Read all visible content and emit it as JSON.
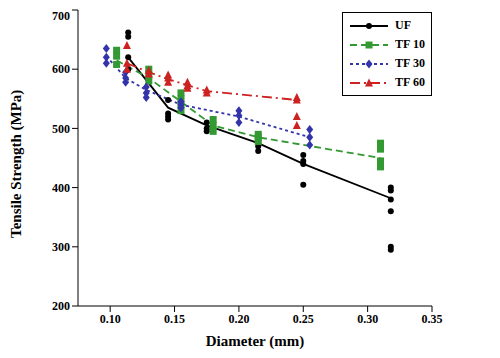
{
  "chart_data": {
    "type": "line",
    "x_label": "Diameter (mm)",
    "y_label": "Tensile Strength (MPa)",
    "xlim": [
      0.075,
      0.35
    ],
    "xticks": [
      {
        "value": 0.1,
        "label": "0.10"
      },
      0.15,
      {
        "value": 0.2,
        "label": "0.20"
      },
      0.25,
      {
        "value": 0.3,
        "label": "0.30"
      },
      0.35
    ],
    "ylim": [
      200,
      700
    ],
    "yticks": [
      200,
      300,
      400,
      500,
      600,
      700
    ],
    "grid": false,
    "legend": "top-right",
    "series": [
      {
        "name": "UF",
        "color": "#000000",
        "marker": "circle",
        "line_style": "solid",
        "x": [
          0.114,
          0.145,
          0.175,
          0.215,
          0.25,
          0.318
        ],
        "values": [
          620,
          535,
          505,
          475,
          440,
          382
        ],
        "replicates": [
          [
            662,
            655,
            620,
            600
          ],
          [
            548,
            525,
            520,
            515
          ],
          [
            510,
            500,
            495
          ],
          [
            478,
            470,
            462
          ],
          [
            455,
            445,
            440,
            405
          ],
          [
            400,
            395,
            380,
            360,
            300,
            295
          ]
        ]
      },
      {
        "name": "TF 10",
        "color": "#339933",
        "marker": "square",
        "line_style": "dashed",
        "x": [
          0.105,
          0.13,
          0.155,
          0.18,
          0.215,
          0.31
        ],
        "values": [
          615,
          585,
          545,
          505,
          485,
          450
        ],
        "replicates": [
          [
            632,
            622,
            608
          ],
          [
            600,
            590,
            580
          ],
          [
            560,
            550,
            540,
            530
          ],
          [
            515,
            505,
            495
          ],
          [
            490,
            485,
            478
          ],
          [
            475,
            465,
            445,
            435
          ]
        ]
      },
      {
        "name": "TF 30",
        "color": "#3333aa",
        "marker": "diamond",
        "line_style": "dotted",
        "x": [
          0.097,
          0.112,
          0.128,
          0.155,
          0.2,
          0.255
        ],
        "values": [
          622,
          585,
          565,
          540,
          520,
          485
        ],
        "replicates": [
          [
            635,
            620,
            610
          ],
          [
            595,
            585,
            578
          ],
          [
            570,
            560,
            552
          ],
          [
            545,
            540,
            535
          ],
          [
            530,
            522,
            510
          ],
          [
            498,
            485,
            472
          ]
        ]
      },
      {
        "name": "TF 60",
        "color": "#cc2222",
        "marker": "triangle",
        "line_style": "dashdot",
        "x": [
          0.113,
          0.13,
          0.145,
          0.16,
          0.175,
          0.245
        ],
        "values": [
          610,
          595,
          583,
          573,
          563,
          548
        ],
        "replicates": [
          [
            640,
            610,
            600
          ],
          [
            598,
            592
          ],
          [
            590,
            585,
            578
          ],
          [
            578,
            572,
            568
          ],
          [
            565,
            560
          ],
          [
            552,
            548,
            520,
            505
          ]
        ]
      }
    ]
  }
}
